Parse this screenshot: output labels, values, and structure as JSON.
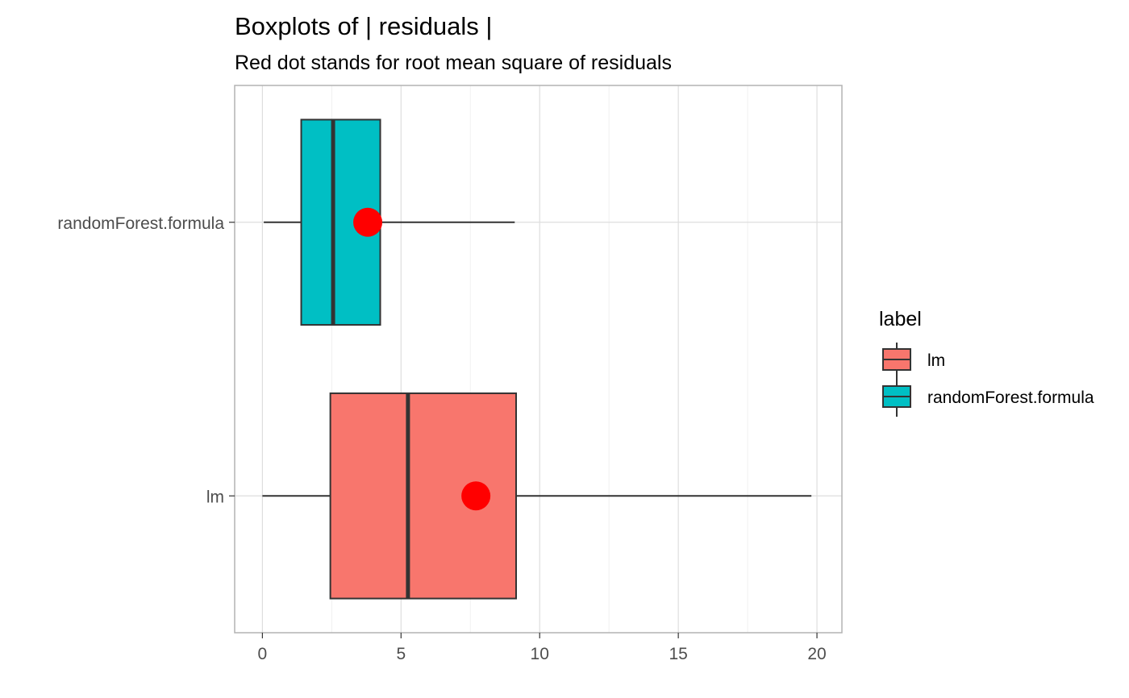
{
  "chart_data": {
    "type": "boxplot",
    "orientation": "horizontal",
    "title": "Boxplots of | residuals |",
    "subtitle": "Red dot stands for root mean square of residuals",
    "xlabel": "",
    "ylabel": "",
    "xlim": [
      -1,
      20.9
    ],
    "x_ticks": [
      0,
      5,
      10,
      15,
      20
    ],
    "categories": [
      "lm",
      "randomForest.formula"
    ],
    "grid": true,
    "legend": {
      "title": "label",
      "position": "right",
      "entries": [
        "lm",
        "randomForest.formula"
      ]
    },
    "series": [
      {
        "name": "lm",
        "color": "#F8766D",
        "whisker_low": 0.0,
        "q1": 2.45,
        "median": 5.25,
        "q3": 9.15,
        "whisker_high": 19.8,
        "rms": 7.7
      },
      {
        "name": "randomForest.formula",
        "color": "#00BFC4",
        "whisker_low": 0.05,
        "q1": 1.4,
        "median": 2.55,
        "q3": 4.25,
        "whisker_high": 9.1,
        "rms": 3.8
      }
    ],
    "rms_color": "#FF0000"
  }
}
